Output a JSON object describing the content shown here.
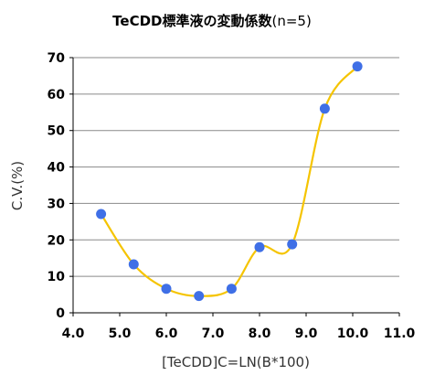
{
  "chart_data": {
    "type": "scatter",
    "title_main": "TeCDD標準液の変動係数",
    "title_sub": "(n=5)",
    "xlabel": "[TeCDD]C=LN(B*100)",
    "ylabel": "C.V.(%)",
    "xlim": [
      4.0,
      11.0
    ],
    "ylim": [
      0,
      70
    ],
    "x_ticks": [
      "4.0",
      "5.0",
      "6.0",
      "7.0",
      "8.0",
      "9.0",
      "10.0",
      "11.0"
    ],
    "y_ticks": [
      "0",
      "10",
      "20",
      "30",
      "40",
      "50",
      "60",
      "70"
    ],
    "grid": "horizontal",
    "smoothed_line": true,
    "marker_color": "#3f6fe6",
    "line_color": "#f5c400",
    "points": [
      {
        "x": 4.6,
        "y": 27.1
      },
      {
        "x": 5.3,
        "y": 13.3
      },
      {
        "x": 6.0,
        "y": 6.6
      },
      {
        "x": 6.7,
        "y": 4.6
      },
      {
        "x": 7.4,
        "y": 6.6
      },
      {
        "x": 8.0,
        "y": 18.0
      },
      {
        "x": 8.7,
        "y": 18.8
      },
      {
        "x": 9.4,
        "y": 56.0
      },
      {
        "x": 10.1,
        "y": 67.6
      }
    ]
  }
}
